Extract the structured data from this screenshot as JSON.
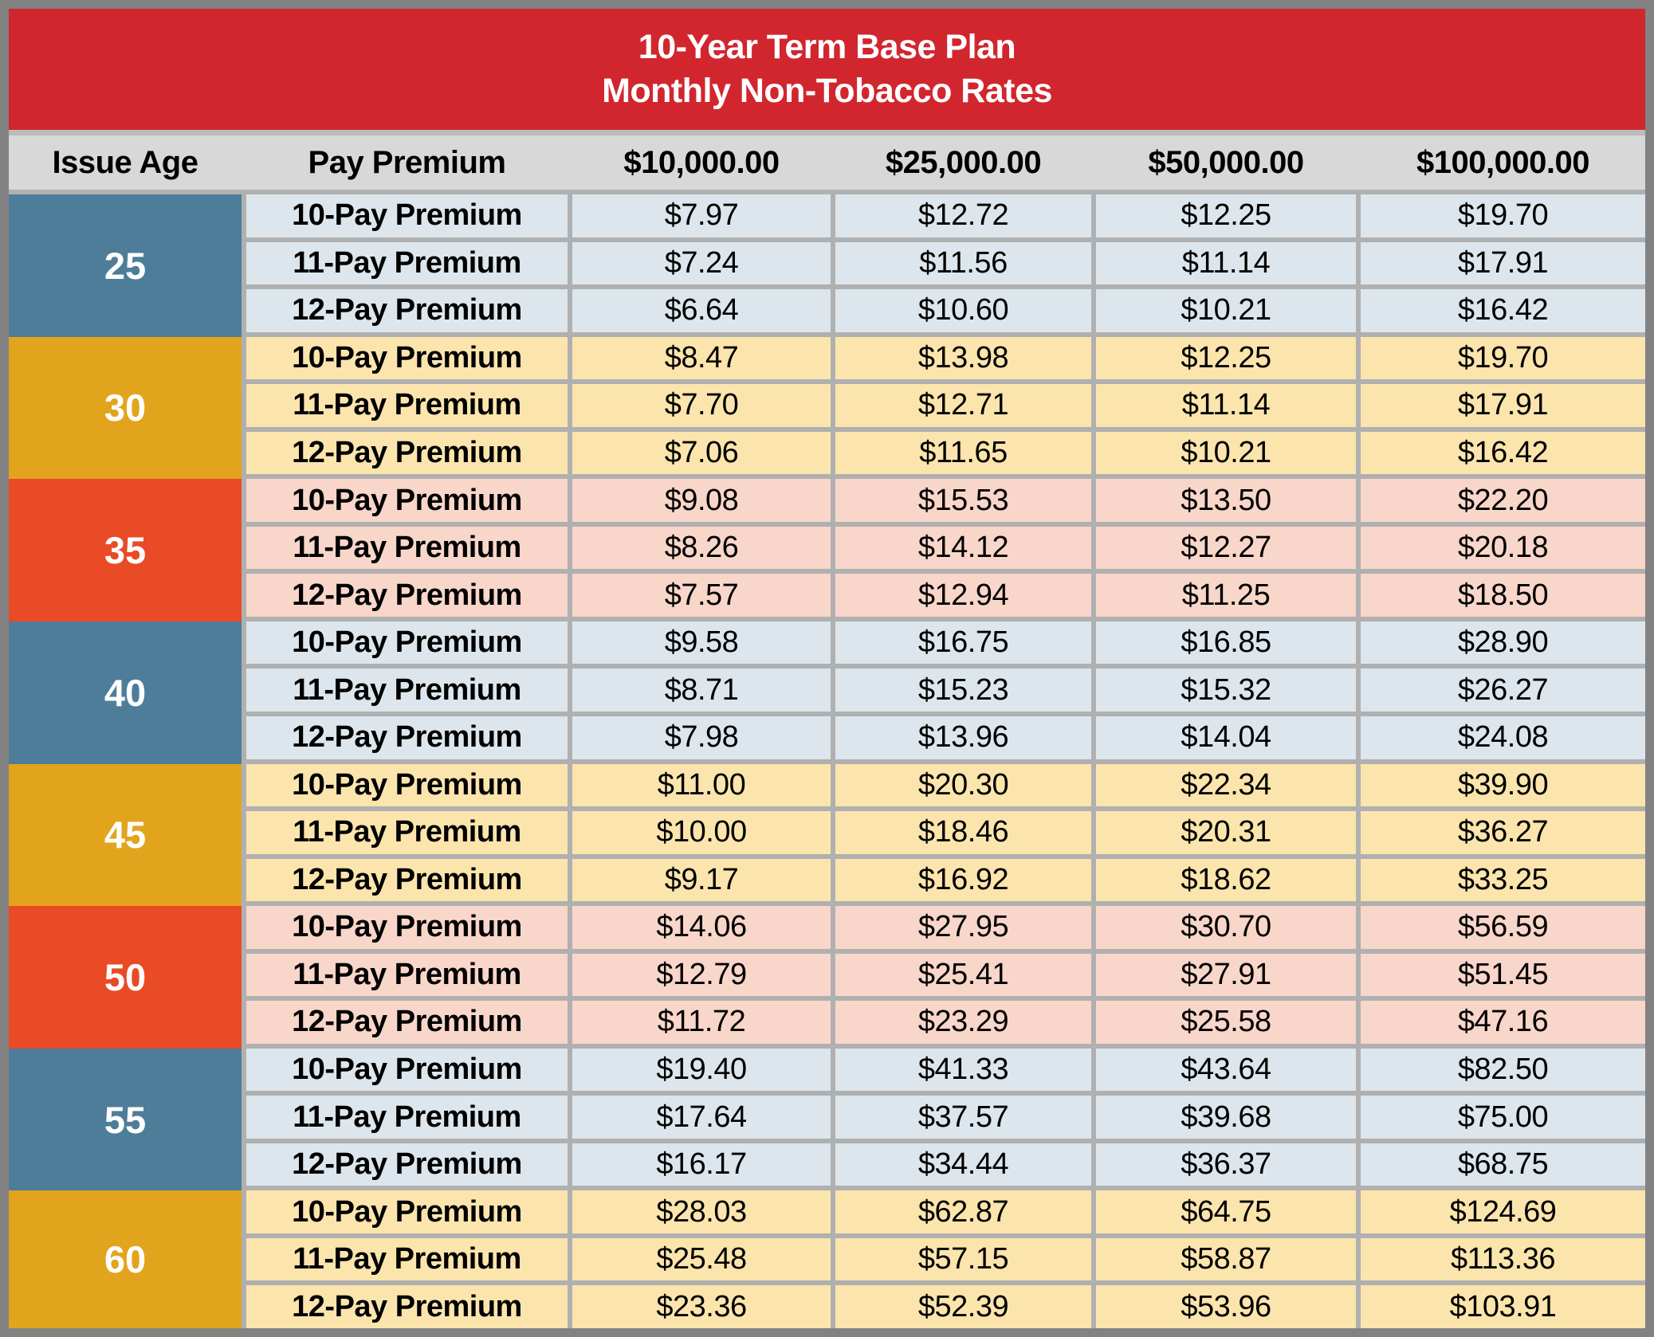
{
  "title": {
    "line1": "10-Year Term Base Plan",
    "line2": "Monthly Non-Tobacco Rates"
  },
  "header": {
    "columns": [
      "Issue Age",
      "Pay Premium",
      "$10,000.00",
      "$25,000.00",
      "$50,000.00",
      "$100,000.00"
    ]
  },
  "age_groups": [
    {
      "age": "25",
      "theme": "blue",
      "rows": [
        {
          "label": "10-Pay Premium",
          "values": [
            "$7.97",
            "$12.72",
            "$12.25",
            "$19.70"
          ]
        },
        {
          "label": "11-Pay Premium",
          "values": [
            "$7.24",
            "$11.56",
            "$11.14",
            "$17.91"
          ]
        },
        {
          "label": "12-Pay Premium",
          "values": [
            "$6.64",
            "$10.60",
            "$10.21",
            "$16.42"
          ]
        }
      ]
    },
    {
      "age": "30",
      "theme": "amber",
      "rows": [
        {
          "label": "10-Pay Premium",
          "values": [
            "$8.47",
            "$13.98",
            "$12.25",
            "$19.70"
          ]
        },
        {
          "label": "11-Pay Premium",
          "values": [
            "$7.70",
            "$12.71",
            "$11.14",
            "$17.91"
          ]
        },
        {
          "label": "12-Pay Premium",
          "values": [
            "$7.06",
            "$11.65",
            "$10.21",
            "$16.42"
          ]
        }
      ]
    },
    {
      "age": "35",
      "theme": "red",
      "rows": [
        {
          "label": "10-Pay Premium",
          "values": [
            "$9.08",
            "$15.53",
            "$13.50",
            "$22.20"
          ]
        },
        {
          "label": "11-Pay Premium",
          "values": [
            "$8.26",
            "$14.12",
            "$12.27",
            "$20.18"
          ]
        },
        {
          "label": "12-Pay Premium",
          "values": [
            "$7.57",
            "$12.94",
            "$11.25",
            "$18.50"
          ]
        }
      ]
    },
    {
      "age": "40",
      "theme": "blue",
      "rows": [
        {
          "label": "10-Pay Premium",
          "values": [
            "$9.58",
            "$16.75",
            "$16.85",
            "$28.90"
          ]
        },
        {
          "label": "11-Pay Premium",
          "values": [
            "$8.71",
            "$15.23",
            "$15.32",
            "$26.27"
          ]
        },
        {
          "label": "12-Pay Premium",
          "values": [
            "$7.98",
            "$13.96",
            "$14.04",
            "$24.08"
          ]
        }
      ]
    },
    {
      "age": "45",
      "theme": "amber",
      "rows": [
        {
          "label": "10-Pay Premium",
          "values": [
            "$11.00",
            "$20.30",
            "$22.34",
            "$39.90"
          ]
        },
        {
          "label": "11-Pay Premium",
          "values": [
            "$10.00",
            "$18.46",
            "$20.31",
            "$36.27"
          ]
        },
        {
          "label": "12-Pay Premium",
          "values": [
            "$9.17",
            "$16.92",
            "$18.62",
            "$33.25"
          ]
        }
      ]
    },
    {
      "age": "50",
      "theme": "red",
      "rows": [
        {
          "label": "10-Pay Premium",
          "values": [
            "$14.06",
            "$27.95",
            "$30.70",
            "$56.59"
          ]
        },
        {
          "label": "11-Pay Premium",
          "values": [
            "$12.79",
            "$25.41",
            "$27.91",
            "$51.45"
          ]
        },
        {
          "label": "12-Pay Premium",
          "values": [
            "$11.72",
            "$23.29",
            "$25.58",
            "$47.16"
          ]
        }
      ]
    },
    {
      "age": "55",
      "theme": "blue",
      "rows": [
        {
          "label": "10-Pay Premium",
          "values": [
            "$19.40",
            "$41.33",
            "$43.64",
            "$82.50"
          ]
        },
        {
          "label": "11-Pay Premium",
          "values": [
            "$17.64",
            "$37.57",
            "$39.68",
            "$75.00"
          ]
        },
        {
          "label": "12-Pay Premium",
          "values": [
            "$16.17",
            "$34.44",
            "$36.37",
            "$68.75"
          ]
        }
      ]
    },
    {
      "age": "60",
      "theme": "amber",
      "rows": [
        {
          "label": "10-Pay Premium",
          "values": [
            "$28.03",
            "$62.87",
            "$64.75",
            "$124.69"
          ]
        },
        {
          "label": "11-Pay Premium",
          "values": [
            "$25.48",
            "$57.15",
            "$58.87",
            "$113.36"
          ]
        },
        {
          "label": "12-Pay Premium",
          "values": [
            "$23.36",
            "$52.39",
            "$53.96",
            "$103.91"
          ]
        }
      ]
    }
  ],
  "colors": {
    "banner_red": "#d2262f",
    "age_blue": "#4e7d99",
    "age_amber": "#e3a41d",
    "age_orange_red": "#e94b26",
    "row_blue": "#dce6ec",
    "row_cream": "#fbe5ad",
    "row_pink": "#f8d6ca",
    "header_gray": "#d8d8d8",
    "grid_line_gray": "#b0b0b0",
    "frame_gray": "#828282",
    "text_black": "#000000",
    "text_white": "#ffffff"
  },
  "chart_data": {
    "type": "table",
    "title": "10-Year Term Base Plan Monthly Non-Tobacco Rates",
    "columns": [
      "Issue Age",
      "Pay Premium",
      "$10,000.00",
      "$25,000.00",
      "$50,000.00",
      "$100,000.00"
    ],
    "rows": [
      [
        "25",
        "10-Pay Premium",
        "$7.97",
        "$12.72",
        "$12.25",
        "$19.70"
      ],
      [
        "25",
        "11-Pay Premium",
        "$7.24",
        "$11.56",
        "$11.14",
        "$17.91"
      ],
      [
        "25",
        "12-Pay Premium",
        "$6.64",
        "$10.60",
        "$10.21",
        "$16.42"
      ],
      [
        "30",
        "10-Pay Premium",
        "$8.47",
        "$13.98",
        "$12.25",
        "$19.70"
      ],
      [
        "30",
        "11-Pay Premium",
        "$7.70",
        "$12.71",
        "$11.14",
        "$17.91"
      ],
      [
        "30",
        "12-Pay Premium",
        "$7.06",
        "$11.65",
        "$10.21",
        "$16.42"
      ],
      [
        "35",
        "10-Pay Premium",
        "$9.08",
        "$15.53",
        "$13.50",
        "$22.20"
      ],
      [
        "35",
        "11-Pay Premium",
        "$8.26",
        "$14.12",
        "$12.27",
        "$20.18"
      ],
      [
        "35",
        "12-Pay Premium",
        "$7.57",
        "$12.94",
        "$11.25",
        "$18.50"
      ],
      [
        "40",
        "10-Pay Premium",
        "$9.58",
        "$16.75",
        "$16.85",
        "$28.90"
      ],
      [
        "40",
        "11-Pay Premium",
        "$8.71",
        "$15.23",
        "$15.32",
        "$26.27"
      ],
      [
        "40",
        "12-Pay Premium",
        "$7.98",
        "$13.96",
        "$14.04",
        "$24.08"
      ],
      [
        "45",
        "10-Pay Premium",
        "$11.00",
        "$20.30",
        "$22.34",
        "$39.90"
      ],
      [
        "45",
        "11-Pay Premium",
        "$10.00",
        "$18.46",
        "$20.31",
        "$36.27"
      ],
      [
        "45",
        "12-Pay Premium",
        "$9.17",
        "$16.92",
        "$18.62",
        "$33.25"
      ],
      [
        "50",
        "10-Pay Premium",
        "$14.06",
        "$27.95",
        "$30.70",
        "$56.59"
      ],
      [
        "50",
        "11-Pay Premium",
        "$12.79",
        "$25.41",
        "$27.91",
        "$51.45"
      ],
      [
        "50",
        "12-Pay Premium",
        "$11.72",
        "$23.29",
        "$25.58",
        "$47.16"
      ],
      [
        "55",
        "10-Pay Premium",
        "$19.40",
        "$41.33",
        "$43.64",
        "$82.50"
      ],
      [
        "55",
        "11-Pay Premium",
        "$17.64",
        "$37.57",
        "$39.68",
        "$75.00"
      ],
      [
        "55",
        "12-Pay Premium",
        "$16.17",
        "$34.44",
        "$36.37",
        "$68.75"
      ],
      [
        "60",
        "10-Pay Premium",
        "$28.03",
        "$62.87",
        "$64.75",
        "$124.69"
      ],
      [
        "60",
        "11-Pay Premium",
        "$25.48",
        "$57.15",
        "$58.87",
        "$113.36"
      ],
      [
        "60",
        "12-Pay Premium",
        "$23.36",
        "$52.39",
        "$53.96",
        "$103.91"
      ]
    ]
  }
}
